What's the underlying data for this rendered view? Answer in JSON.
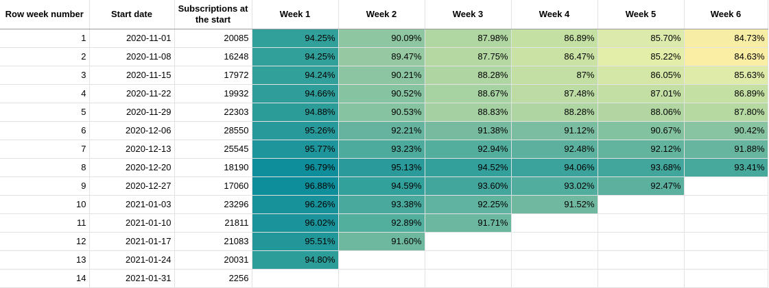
{
  "headers": [
    "Row week number",
    "Start date",
    "Subscriptions at the start",
    "Week 1",
    "Week 2",
    "Week 3",
    "Week 4",
    "Week 5",
    "Week 6"
  ],
  "rows": [
    {
      "row": "1",
      "start": "2020-11-01",
      "subs": "20085",
      "weeks": [
        "94.25%",
        "90.09%",
        "87.98%",
        "86.89%",
        "85.70%",
        "84.73%"
      ],
      "colors": [
        "#32a09a",
        "#8dc6a1",
        "#b0d6a2",
        "#c5e0a3",
        "#dcebab",
        "#f8eda4"
      ]
    },
    {
      "row": "2",
      "start": "2020-11-08",
      "subs": "16248",
      "weeks": [
        "94.25%",
        "89.47%",
        "87.75%",
        "86.47%",
        "85.22%",
        "84.63%"
      ],
      "colors": [
        "#32a09a",
        "#94c9a1",
        "#b4d8a2",
        "#cae3a5",
        "#e3eea9",
        "#faeea4"
      ]
    },
    {
      "row": "3",
      "start": "2020-11-15",
      "subs": "17972",
      "weeks": [
        "94.24%",
        "90.21%",
        "88.28%",
        "87%",
        "86.05%",
        "85.63%"
      ],
      "colors": [
        "#32a09a",
        "#8bc5a1",
        "#aed5a2",
        "#c3dfa3",
        "#d4e7a6",
        "#dfeba9"
      ]
    },
    {
      "row": "4",
      "start": "2020-11-22",
      "subs": "19932",
      "weeks": [
        "94.66%",
        "90.52%",
        "88.67%",
        "87.48%",
        "87.01%",
        "86.89%"
      ],
      "colors": [
        "#2f9e9a",
        "#86c3a1",
        "#a7d2a2",
        "#bcdca3",
        "#c3dfa3",
        "#c5e0a3"
      ]
    },
    {
      "row": "5",
      "start": "2020-11-29",
      "subs": "22303",
      "weeks": [
        "94.88%",
        "90.53%",
        "88.83%",
        "88.28%",
        "88.06%",
        "87.80%"
      ],
      "colors": [
        "#2c9c99",
        "#86c3a1",
        "#a5d1a2",
        "#aed5a2",
        "#b1d6a2",
        "#b6d9a2"
      ]
    },
    {
      "row": "6",
      "start": "2020-12-06",
      "subs": "28550",
      "weeks": [
        "95.26%",
        "92.21%",
        "91.38%",
        "91.12%",
        "90.67%",
        "90.42%"
      ],
      "colors": [
        "#27999a",
        "#66b39f",
        "#76bba0",
        "#7bbda0",
        "#83c2a1",
        "#88c4a1"
      ]
    },
    {
      "row": "7",
      "start": "2020-12-13",
      "subs": "25545",
      "weeks": [
        "95.77%",
        "93.23%",
        "92.94%",
        "92.48%",
        "92.12%",
        "91.88%"
      ],
      "colors": [
        "#1e959a",
        "#4cab9d",
        "#53ae9e",
        "#5bb19e",
        "#62b49f",
        "#68b59f"
      ]
    },
    {
      "row": "8",
      "start": "2020-12-20",
      "subs": "18190",
      "weeks": [
        "96.79%",
        "95.13%",
        "94.52%",
        "94.06%",
        "93.68%",
        "93.41%"
      ],
      "colors": [
        "#0e8e9a",
        "#2a9b9a",
        "#33a09b",
        "#3ba39b",
        "#42a69c",
        "#47a89c"
      ]
    },
    {
      "row": "9",
      "start": "2020-12-27",
      "subs": "17060",
      "weeks": [
        "96.88%",
        "94.59%",
        "93.60%",
        "93.02%",
        "92.47%",
        ""
      ],
      "colors": [
        "#0d8e9a",
        "#32a09b",
        "#43a69c",
        "#51ad9d",
        "#5bb19e",
        "#ffffff"
      ]
    },
    {
      "row": "10",
      "start": "2021-01-03",
      "subs": "23296",
      "weeks": [
        "96.26%",
        "93.38%",
        "92.25%",
        "91.52%",
        "",
        ""
      ],
      "colors": [
        "#17929a",
        "#48a99c",
        "#60b39f",
        "#70b8a0",
        "#ffffff",
        "#ffffff"
      ]
    },
    {
      "row": "11",
      "start": "2021-01-10",
      "subs": "21811",
      "weeks": [
        "96.02%",
        "92.89%",
        "91.71%",
        "",
        "",
        ""
      ],
      "colors": [
        "#1a939a",
        "#52ae9d",
        "#6cb7a0",
        "#ffffff",
        "#ffffff",
        "#ffffff"
      ]
    },
    {
      "row": "12",
      "start": "2021-01-17",
      "subs": "21083",
      "weeks": [
        "95.51%",
        "91.60%",
        "",
        "",
        "",
        ""
      ],
      "colors": [
        "#22979a",
        "#6fb8a0",
        "#ffffff",
        "#ffffff",
        "#ffffff",
        "#ffffff"
      ]
    },
    {
      "row": "13",
      "start": "2021-01-24",
      "subs": "20031",
      "weeks": [
        "94.80%",
        "",
        "",
        "",
        "",
        ""
      ],
      "colors": [
        "#2d9d9a",
        "#ffffff",
        "#ffffff",
        "#ffffff",
        "#ffffff",
        "#ffffff"
      ]
    },
    {
      "row": "14",
      "start": "2021-01-31",
      "subs": "2256",
      "weeks": [
        "",
        "",
        "",
        "",
        "",
        ""
      ],
      "colors": [
        "#ffffff",
        "#ffffff",
        "#ffffff",
        "#ffffff",
        "#ffffff",
        "#ffffff"
      ]
    }
  ]
}
